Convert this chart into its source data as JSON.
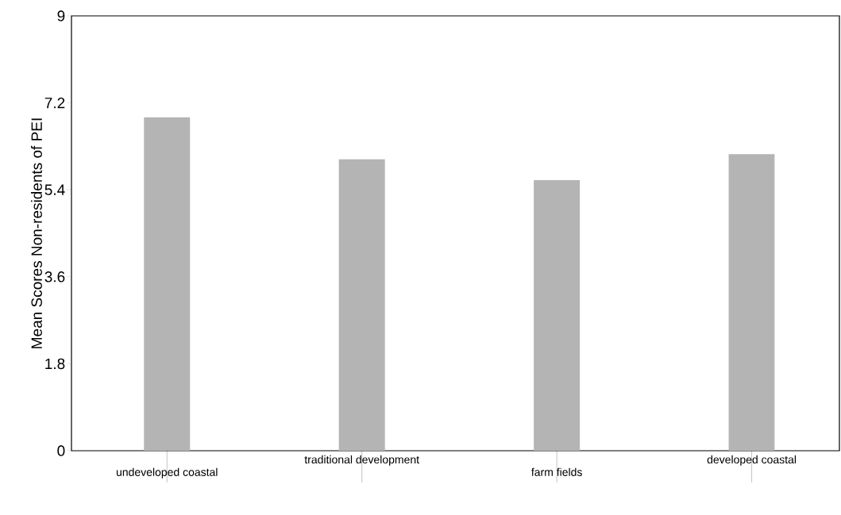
{
  "chart_data": {
    "type": "bar",
    "ylabel": "Mean Scores Non-residents of PEI",
    "categories": [
      "undeveloped coastal",
      "traditional development",
      "farm fields",
      "developed coastal"
    ],
    "values": [
      6.9,
      6.03,
      5.6,
      6.14
    ],
    "color": "#b4b4b4",
    "ylim": [
      0,
      9
    ],
    "yticks": [
      0,
      1.8,
      3.6,
      5.4,
      7.2,
      9
    ],
    "grid": false
  }
}
